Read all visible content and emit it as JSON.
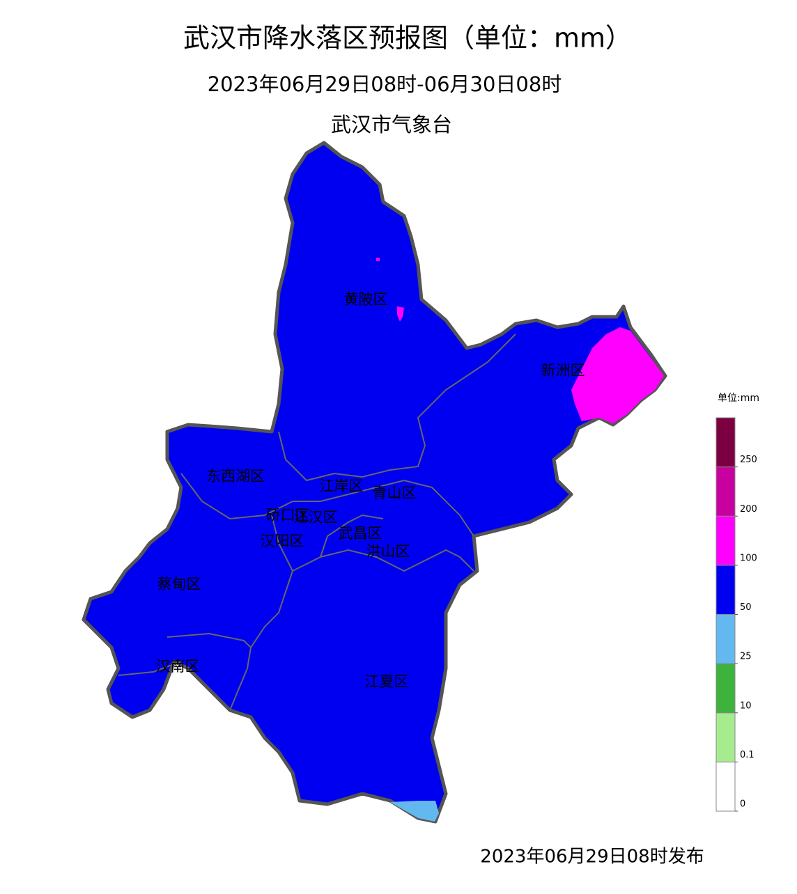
{
  "header": {
    "title": "武汉市降水落区预报图（单位：mm）",
    "period": "2023年06月29日08时-06月30日08时",
    "issuer": "武汉市气象台"
  },
  "districts": [
    {
      "name": "黄陂区"
    },
    {
      "name": "新洲区"
    },
    {
      "name": "东西湖区"
    },
    {
      "name": "江岸区"
    },
    {
      "name": "青山区"
    },
    {
      "name": "硚口区"
    },
    {
      "name": "江汉区"
    },
    {
      "name": "汉阳区"
    },
    {
      "name": "武昌区"
    },
    {
      "name": "洪山区"
    },
    {
      "name": "蔡甸区"
    },
    {
      "name": "汉南区"
    },
    {
      "name": "江夏区"
    }
  ],
  "legend": {
    "title": "单位:mm",
    "ticks": [
      0,
      0.1,
      10,
      25,
      50,
      100,
      200,
      250
    ],
    "colors": [
      "#ffffff",
      "#a6ec8e",
      "#3db33d",
      "#63b8f0",
      "#0000f0",
      "#ff00ff",
      "#c8009f",
      "#7c0041"
    ]
  },
  "footer": "2023年06月29日08时发布"
}
